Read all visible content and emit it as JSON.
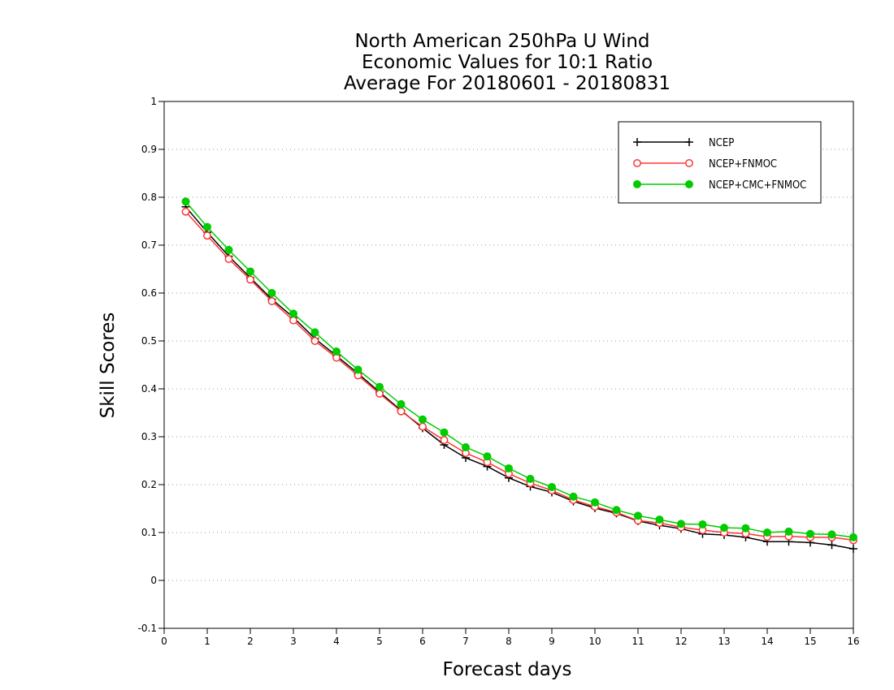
{
  "chart_data": {
    "type": "line",
    "title": [
      "North American 250hPa U Wind",
      "Economic Values for 10:1 Ratio",
      "Average For 20180601 - 20180831"
    ],
    "xlabel": "Forecast days",
    "ylabel": "Skill Scores",
    "xlim": [
      0,
      16
    ],
    "ylim": [
      -0.1,
      1
    ],
    "xticks": [
      0,
      1,
      2,
      3,
      4,
      5,
      6,
      7,
      8,
      9,
      10,
      11,
      12,
      13,
      14,
      15,
      16
    ],
    "yticks": [
      -0.1,
      0,
      0.1,
      0.2,
      0.3,
      0.4,
      0.5,
      0.6,
      0.7,
      0.8,
      0.9,
      1
    ],
    "ytick_labels": [
      "-0.1",
      "0",
      "0.1",
      "0.2",
      "0.3",
      "0.4",
      "0.5",
      "0.6",
      "0.7",
      "0.8",
      "0.9",
      "1"
    ],
    "grid": "dotted horizontal",
    "legend_position": "top-right",
    "x": [
      0.5,
      1,
      1.5,
      2,
      2.5,
      3,
      3.5,
      4,
      4.5,
      5,
      5.5,
      6,
      6.5,
      7,
      7.5,
      8,
      8.5,
      9,
      9.5,
      10,
      10.5,
      11,
      11.5,
      12,
      12.5,
      13,
      13.5,
      14,
      14.5,
      15,
      15.5,
      16
    ],
    "series": [
      {
        "name": "NCEP",
        "color": "#000000",
        "marker": "plus",
        "values": [
          0.78,
          0.727,
          0.677,
          0.632,
          0.587,
          0.549,
          0.505,
          0.469,
          0.432,
          0.393,
          0.355,
          0.318,
          0.283,
          0.256,
          0.238,
          0.214,
          0.196,
          0.184,
          0.165,
          0.151,
          0.14,
          0.124,
          0.115,
          0.108,
          0.097,
          0.095,
          0.09,
          0.081,
          0.081,
          0.079,
          0.074,
          0.066
        ]
      },
      {
        "name": "NCEP+FNMOC",
        "color": "#ff3333",
        "marker": "open-circle",
        "values": [
          0.77,
          0.72,
          0.671,
          0.628,
          0.583,
          0.543,
          0.5,
          0.465,
          0.428,
          0.39,
          0.353,
          0.321,
          0.293,
          0.266,
          0.247,
          0.223,
          0.203,
          0.188,
          0.168,
          0.154,
          0.142,
          0.125,
          0.12,
          0.111,
          0.105,
          0.1,
          0.098,
          0.091,
          0.092,
          0.09,
          0.09,
          0.084
        ]
      },
      {
        "name": "NCEP+CMC+FNMOC",
        "color": "#00cc00",
        "marker": "filled-circle",
        "values": [
          0.791,
          0.738,
          0.69,
          0.645,
          0.6,
          0.557,
          0.518,
          0.478,
          0.44,
          0.404,
          0.368,
          0.336,
          0.309,
          0.278,
          0.259,
          0.234,
          0.212,
          0.195,
          0.175,
          0.163,
          0.147,
          0.135,
          0.127,
          0.118,
          0.117,
          0.11,
          0.109,
          0.1,
          0.102,
          0.097,
          0.096,
          0.09
        ]
      }
    ]
  }
}
